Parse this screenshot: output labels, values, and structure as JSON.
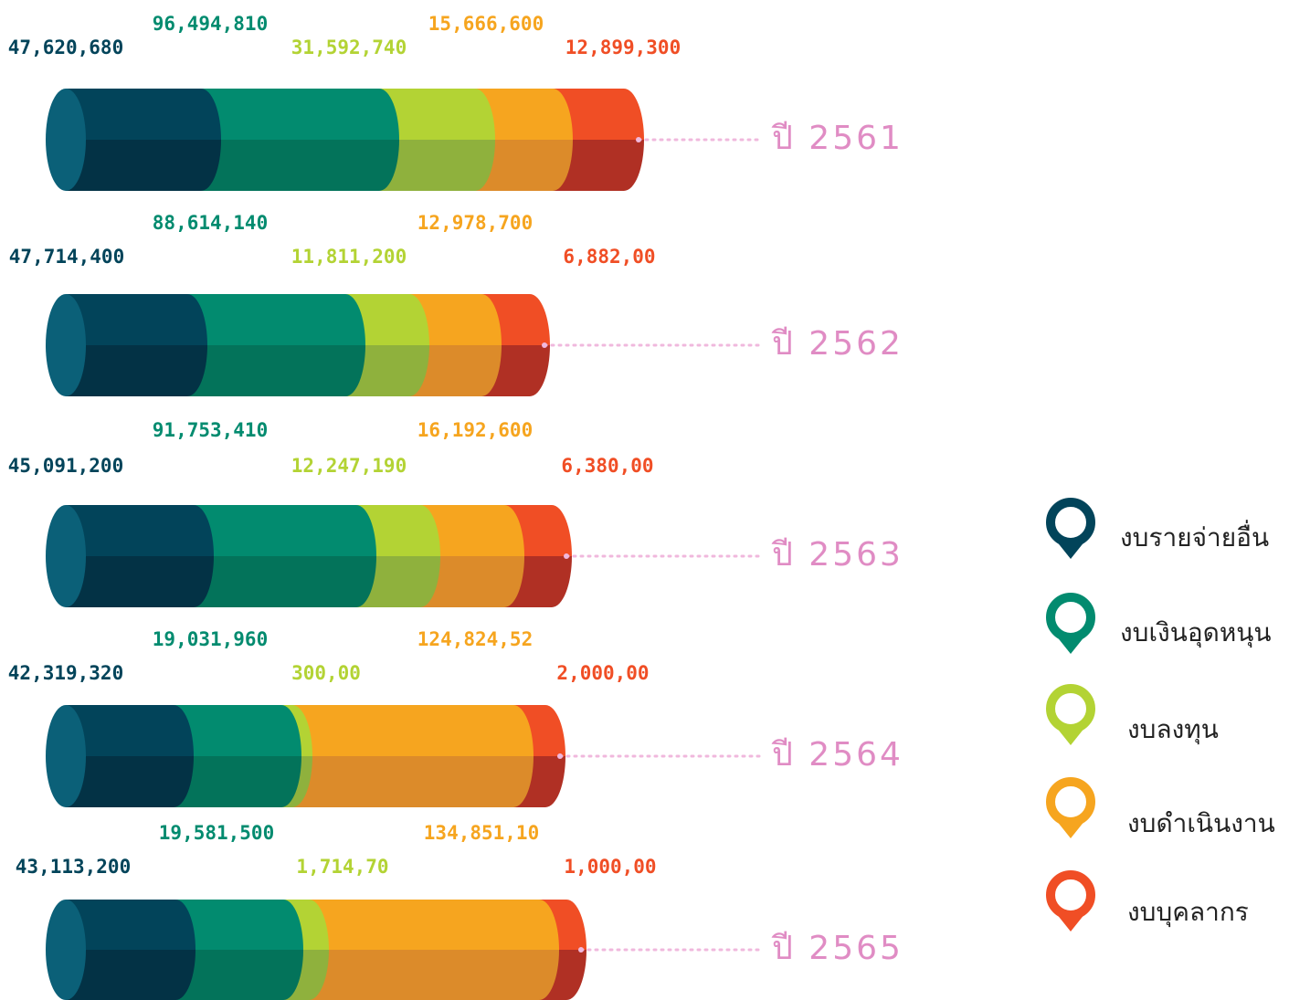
{
  "rows": [
    {
      "year": "ปี 2561",
      "labels": [
        "47,620,680",
        "96,494,810",
        "31,592,740",
        "15,666,600",
        "12,899,300"
      ]
    },
    {
      "year": "ปี 2562",
      "labels": [
        "47,714,400",
        "88,614,140",
        "11,811,200",
        "12,978,700",
        "6,882,00"
      ]
    },
    {
      "year": "ปี 2563",
      "labels": [
        "45,091,200",
        "91,753,410",
        "12,247,190",
        "16,192,600",
        "6,380,00"
      ]
    },
    {
      "year": "ปี 2564",
      "labels": [
        "42,319,320",
        "19,031,960",
        "300,00",
        "124,824,52",
        "2,000,00"
      ]
    },
    {
      "year": "ปี 2565",
      "labels": [
        "43,113,200",
        "19,581,500",
        "1,714,70",
        "134,851,10",
        "1,000,00"
      ]
    }
  ],
  "legend": [
    "งบรายจ่ายอื่น",
    "งบเงินอุดหนุน",
    "งบลงทุน",
    "งบดำเนินงาน",
    "งบบุคลากร"
  ]
}
